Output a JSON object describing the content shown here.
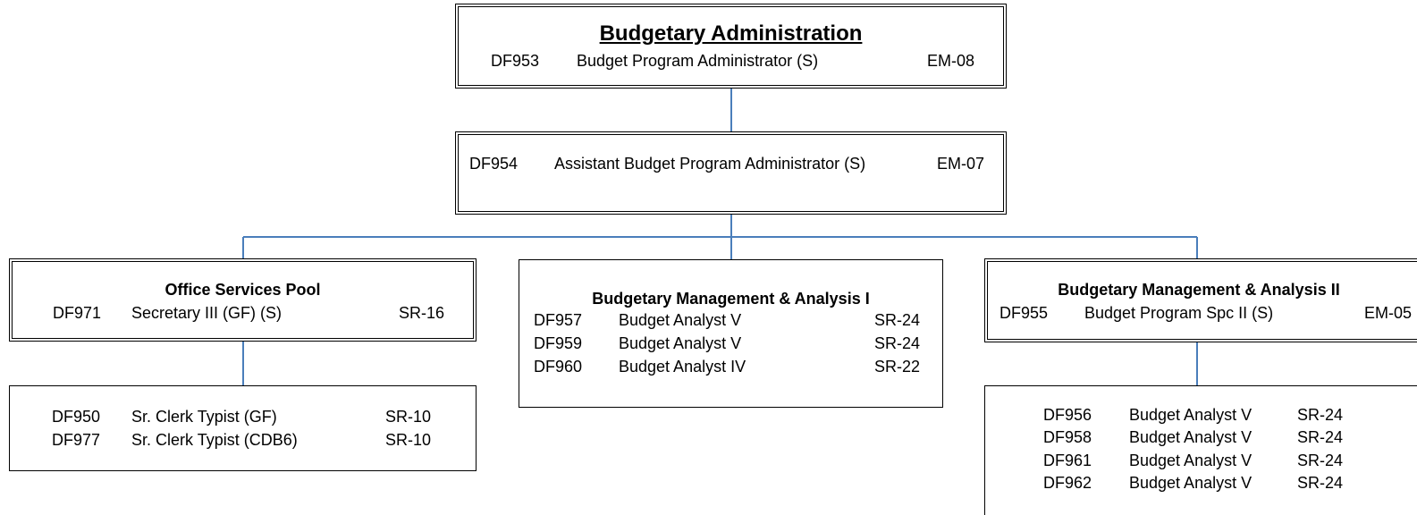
{
  "nodes": [
    {
      "title": "Budgetary Administration",
      "rows": [
        [
          "DF953",
          "Budget Program Administrator (S)",
          "EM-08"
        ]
      ]
    },
    {
      "rows": [
        [
          "DF954",
          "Assistant Budget Program Administrator (S)",
          "EM-07"
        ]
      ]
    },
    {
      "title": "Office Services Pool",
      "rows": [
        [
          "DF971",
          "Secretary III (GF) (S)",
          "SR-16"
        ]
      ]
    },
    {
      "rows": [
        [
          "DF950",
          "Sr. Clerk Typist (GF)",
          "SR-10"
        ],
        [
          "DF977",
          "Sr. Clerk Typist (CDB6)",
          "SR-10"
        ]
      ]
    },
    {
      "title": "Budgetary Management & Analysis I",
      "rows": [
        [
          "DF957",
          "Budget Analyst V",
          "SR-24"
        ],
        [
          "DF959",
          "Budget Analyst V",
          "SR-24"
        ],
        [
          "DF960",
          "Budget Analyst IV",
          "SR-22"
        ]
      ]
    },
    {
      "title": "Budgetary Management & Analysis II",
      "rows": [
        [
          "DF955",
          "Budget Program Spc II (S)",
          "EM-05"
        ]
      ]
    },
    {
      "rows": [
        [
          "DF956",
          "Budget Analyst V",
          "SR-24"
        ],
        [
          "DF958",
          "Budget Analyst V",
          "SR-24"
        ],
        [
          "DF961",
          "Budget Analyst V",
          "SR-24"
        ],
        [
          "DF962",
          "Budget Analyst V",
          "SR-24"
        ]
      ]
    }
  ]
}
